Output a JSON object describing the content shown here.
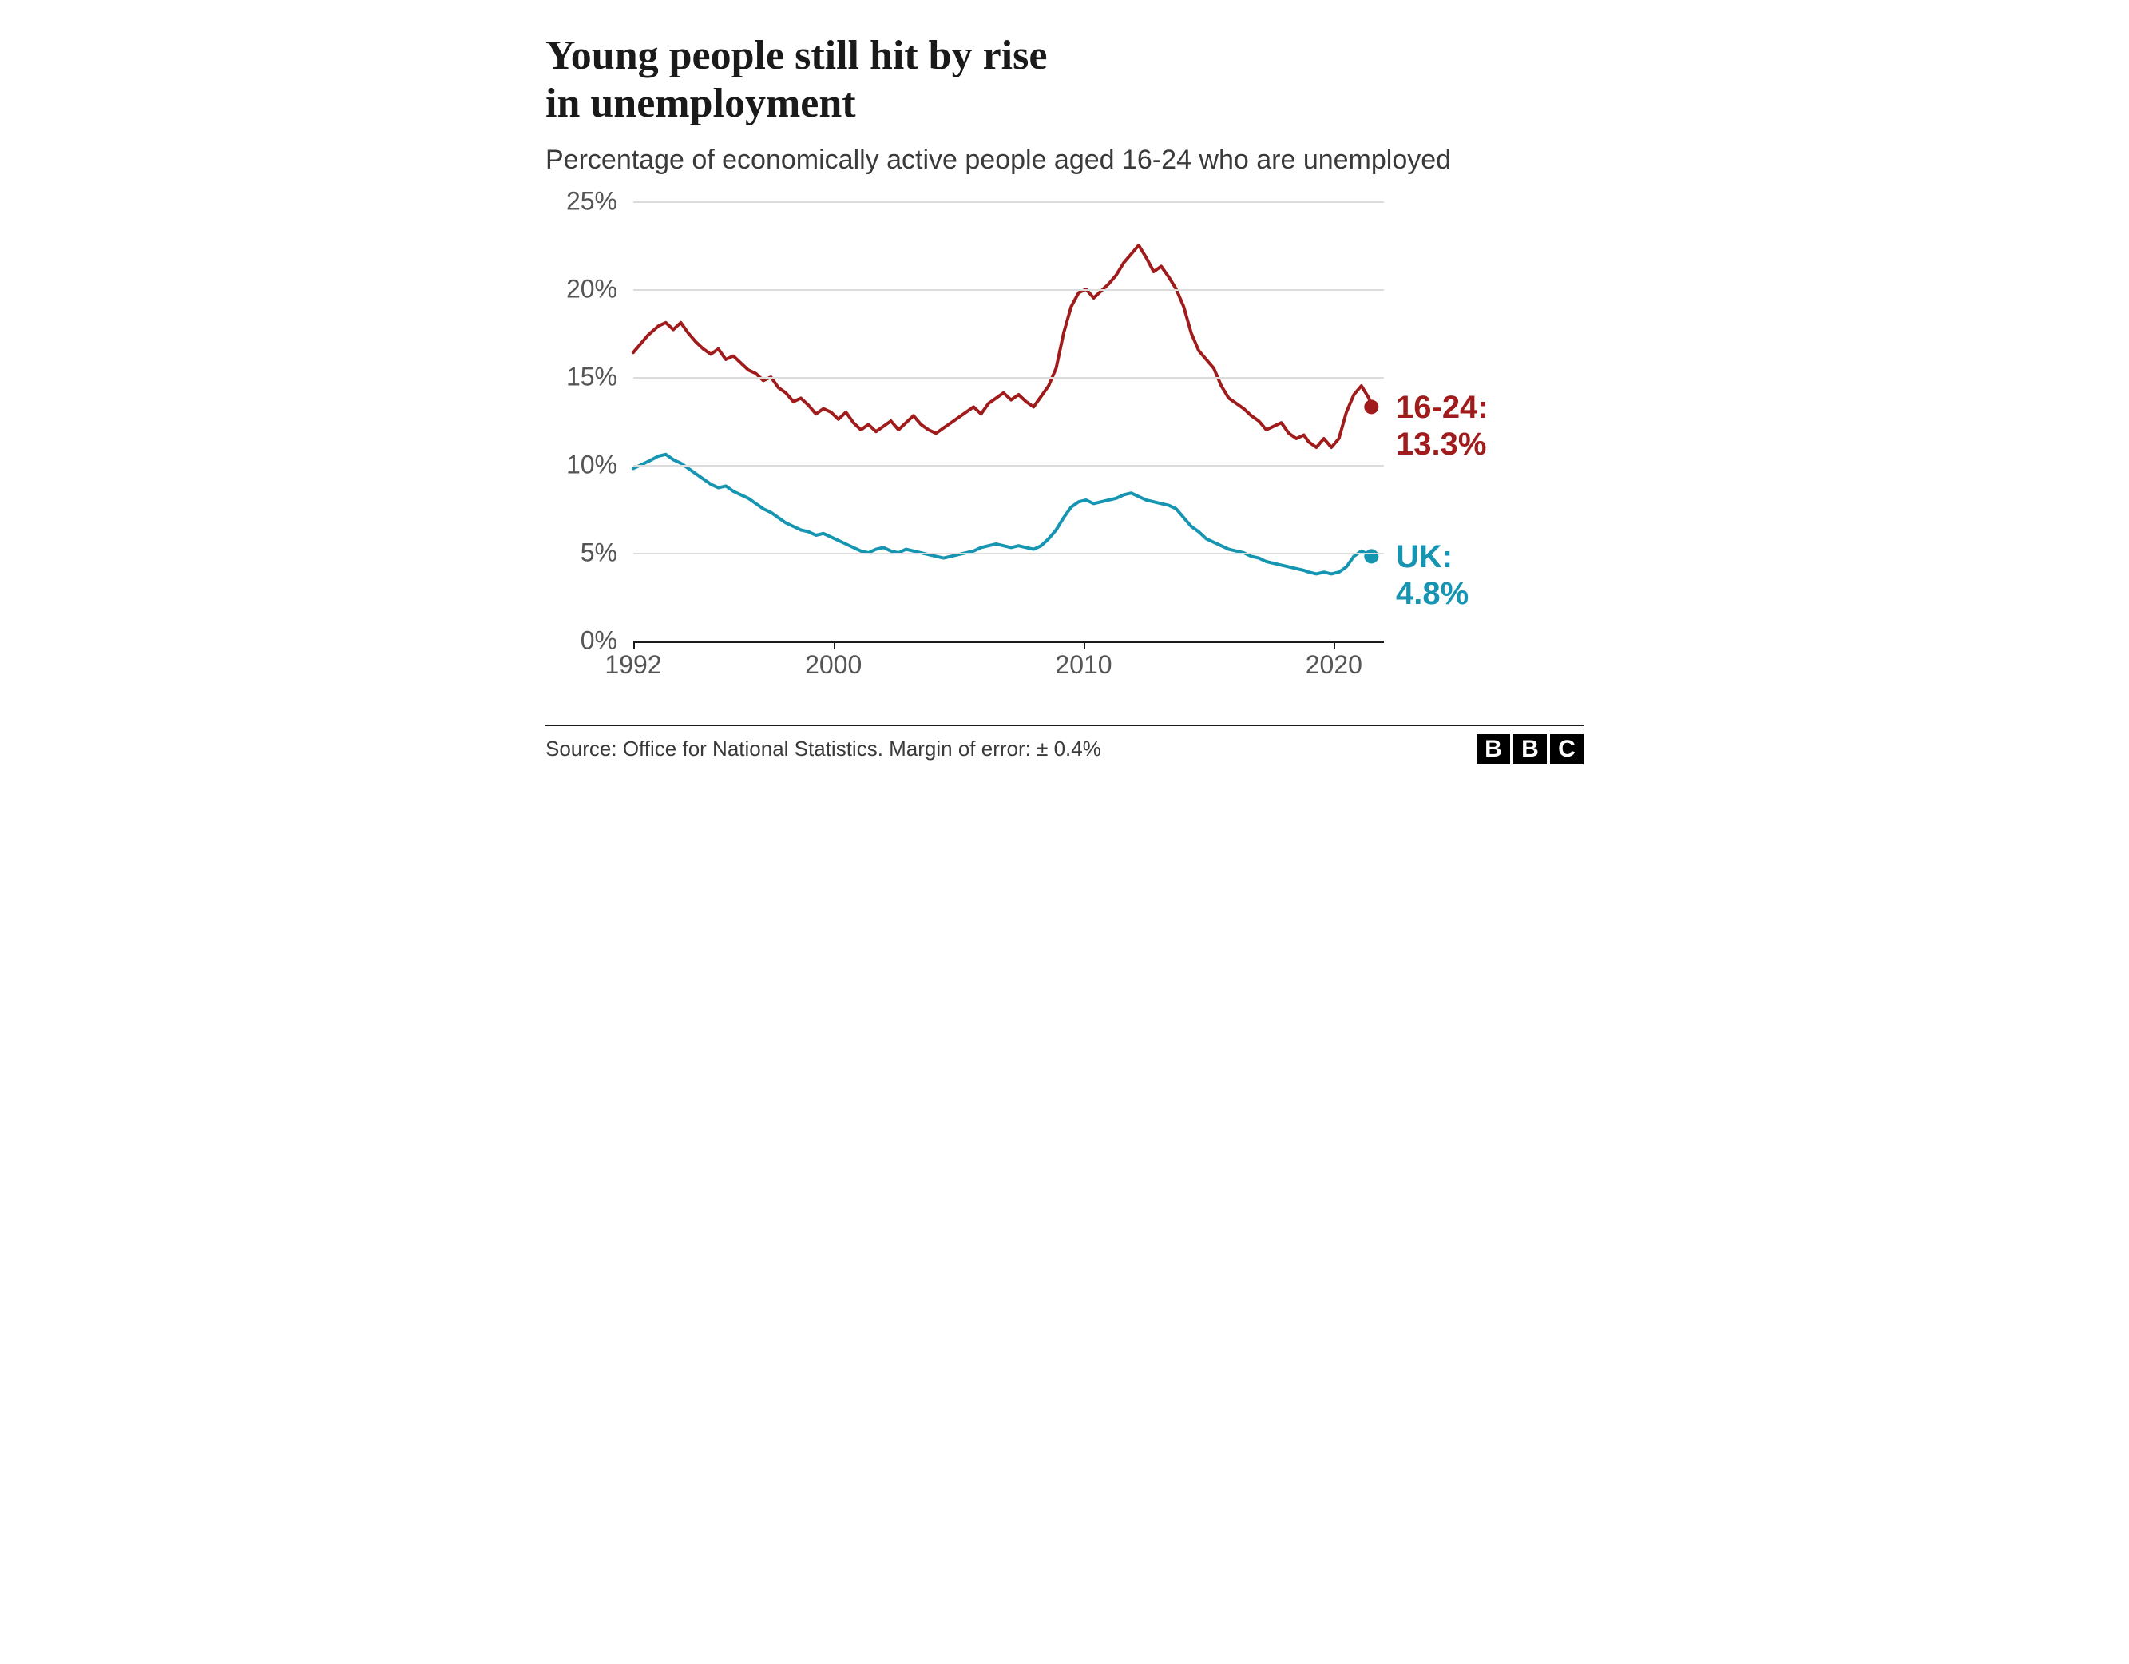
{
  "chart": {
    "type": "line",
    "title": "Young people still hit by rise\nin unemployment",
    "subtitle": "Percentage of economically active people aged 16-24 who are unemployed",
    "background_color": "#ffffff",
    "grid_color": "#dcdcdc",
    "axis_color": "#1a1a1a",
    "axis_label_color": "#555555",
    "title_fontsize": 52,
    "subtitle_fontsize": 34,
    "axis_label_fontsize": 32,
    "end_label_fontsize": 40,
    "x_domain": [
      1992,
      2022
    ],
    "y_domain": [
      0,
      25
    ],
    "y_ticks": [
      0,
      5,
      10,
      15,
      20,
      25
    ],
    "y_tick_labels": [
      "0%",
      "5%",
      "10%",
      "15%",
      "20%",
      "25%"
    ],
    "x_ticks": [
      1992,
      2000,
      2010,
      2020
    ],
    "x_tick_labels": [
      "1992",
      "2000",
      "2010",
      "2020"
    ],
    "line_width": 4,
    "end_marker_radius": 9,
    "series": [
      {
        "name": "16-24",
        "color": "#a01b1b",
        "end_label_line1": "16-24:",
        "end_label_line2": "13.3%",
        "end_value": 13.3,
        "data": [
          [
            1992.0,
            16.4
          ],
          [
            1992.3,
            16.9
          ],
          [
            1992.6,
            17.4
          ],
          [
            1993.0,
            17.9
          ],
          [
            1993.3,
            18.1
          ],
          [
            1993.6,
            17.7
          ],
          [
            1993.9,
            18.1
          ],
          [
            1994.2,
            17.5
          ],
          [
            1994.5,
            17.0
          ],
          [
            1994.8,
            16.6
          ],
          [
            1995.1,
            16.3
          ],
          [
            1995.4,
            16.6
          ],
          [
            1995.7,
            16.0
          ],
          [
            1996.0,
            16.2
          ],
          [
            1996.3,
            15.8
          ],
          [
            1996.6,
            15.4
          ],
          [
            1996.9,
            15.2
          ],
          [
            1997.2,
            14.8
          ],
          [
            1997.5,
            15.0
          ],
          [
            1997.8,
            14.4
          ],
          [
            1998.1,
            14.1
          ],
          [
            1998.4,
            13.6
          ],
          [
            1998.7,
            13.8
          ],
          [
            1999.0,
            13.4
          ],
          [
            1999.3,
            12.9
          ],
          [
            1999.6,
            13.2
          ],
          [
            1999.9,
            13.0
          ],
          [
            2000.2,
            12.6
          ],
          [
            2000.5,
            13.0
          ],
          [
            2000.8,
            12.4
          ],
          [
            2001.1,
            12.0
          ],
          [
            2001.4,
            12.3
          ],
          [
            2001.7,
            11.9
          ],
          [
            2002.0,
            12.2
          ],
          [
            2002.3,
            12.5
          ],
          [
            2002.6,
            12.0
          ],
          [
            2002.9,
            12.4
          ],
          [
            2003.2,
            12.8
          ],
          [
            2003.5,
            12.3
          ],
          [
            2003.8,
            12.0
          ],
          [
            2004.1,
            11.8
          ],
          [
            2004.4,
            12.1
          ],
          [
            2004.7,
            12.4
          ],
          [
            2005.0,
            12.7
          ],
          [
            2005.3,
            13.0
          ],
          [
            2005.6,
            13.3
          ],
          [
            2005.9,
            12.9
          ],
          [
            2006.2,
            13.5
          ],
          [
            2006.5,
            13.8
          ],
          [
            2006.8,
            14.1
          ],
          [
            2007.1,
            13.7
          ],
          [
            2007.4,
            14.0
          ],
          [
            2007.7,
            13.6
          ],
          [
            2008.0,
            13.3
          ],
          [
            2008.3,
            13.9
          ],
          [
            2008.6,
            14.5
          ],
          [
            2008.9,
            15.5
          ],
          [
            2009.2,
            17.5
          ],
          [
            2009.5,
            19.0
          ],
          [
            2009.8,
            19.8
          ],
          [
            2010.1,
            20.0
          ],
          [
            2010.4,
            19.5
          ],
          [
            2010.7,
            19.9
          ],
          [
            2011.0,
            20.3
          ],
          [
            2011.3,
            20.8
          ],
          [
            2011.6,
            21.5
          ],
          [
            2011.9,
            22.0
          ],
          [
            2012.2,
            22.5
          ],
          [
            2012.5,
            21.8
          ],
          [
            2012.8,
            21.0
          ],
          [
            2013.1,
            21.3
          ],
          [
            2013.4,
            20.7
          ],
          [
            2013.7,
            20.0
          ],
          [
            2014.0,
            19.0
          ],
          [
            2014.3,
            17.5
          ],
          [
            2014.6,
            16.5
          ],
          [
            2014.9,
            16.0
          ],
          [
            2015.2,
            15.5
          ],
          [
            2015.5,
            14.5
          ],
          [
            2015.8,
            13.8
          ],
          [
            2016.1,
            13.5
          ],
          [
            2016.4,
            13.2
          ],
          [
            2016.7,
            12.8
          ],
          [
            2017.0,
            12.5
          ],
          [
            2017.3,
            12.0
          ],
          [
            2017.6,
            12.2
          ],
          [
            2017.9,
            12.4
          ],
          [
            2018.2,
            11.8
          ],
          [
            2018.5,
            11.5
          ],
          [
            2018.8,
            11.7
          ],
          [
            2019.0,
            11.3
          ],
          [
            2019.3,
            11.0
          ],
          [
            2019.6,
            11.5
          ],
          [
            2019.9,
            11.0
          ],
          [
            2020.2,
            11.5
          ],
          [
            2020.5,
            13.0
          ],
          [
            2020.8,
            14.0
          ],
          [
            2021.1,
            14.5
          ],
          [
            2021.4,
            13.8
          ],
          [
            2021.5,
            13.3
          ]
        ]
      },
      {
        "name": "UK",
        "color": "#1695b2",
        "end_label_line1": "UK:",
        "end_label_line2": "4.8%",
        "end_value": 4.8,
        "data": [
          [
            1992.0,
            9.8
          ],
          [
            1992.3,
            10.0
          ],
          [
            1992.6,
            10.2
          ],
          [
            1993.0,
            10.5
          ],
          [
            1993.3,
            10.6
          ],
          [
            1993.6,
            10.3
          ],
          [
            1993.9,
            10.1
          ],
          [
            1994.2,
            9.8
          ],
          [
            1994.5,
            9.5
          ],
          [
            1994.8,
            9.2
          ],
          [
            1995.1,
            8.9
          ],
          [
            1995.4,
            8.7
          ],
          [
            1995.7,
            8.8
          ],
          [
            1996.0,
            8.5
          ],
          [
            1996.3,
            8.3
          ],
          [
            1996.6,
            8.1
          ],
          [
            1996.9,
            7.8
          ],
          [
            1997.2,
            7.5
          ],
          [
            1997.5,
            7.3
          ],
          [
            1997.8,
            7.0
          ],
          [
            1998.1,
            6.7
          ],
          [
            1998.4,
            6.5
          ],
          [
            1998.7,
            6.3
          ],
          [
            1999.0,
            6.2
          ],
          [
            1999.3,
            6.0
          ],
          [
            1999.6,
            6.1
          ],
          [
            1999.9,
            5.9
          ],
          [
            2000.2,
            5.7
          ],
          [
            2000.5,
            5.5
          ],
          [
            2000.8,
            5.3
          ],
          [
            2001.1,
            5.1
          ],
          [
            2001.4,
            5.0
          ],
          [
            2001.7,
            5.2
          ],
          [
            2002.0,
            5.3
          ],
          [
            2002.3,
            5.1
          ],
          [
            2002.6,
            5.0
          ],
          [
            2002.9,
            5.2
          ],
          [
            2003.2,
            5.1
          ],
          [
            2003.5,
            5.0
          ],
          [
            2003.8,
            4.9
          ],
          [
            2004.1,
            4.8
          ],
          [
            2004.4,
            4.7
          ],
          [
            2004.7,
            4.8
          ],
          [
            2005.0,
            4.9
          ],
          [
            2005.3,
            5.0
          ],
          [
            2005.6,
            5.1
          ],
          [
            2005.9,
            5.3
          ],
          [
            2006.2,
            5.4
          ],
          [
            2006.5,
            5.5
          ],
          [
            2006.8,
            5.4
          ],
          [
            2007.1,
            5.3
          ],
          [
            2007.4,
            5.4
          ],
          [
            2007.7,
            5.3
          ],
          [
            2008.0,
            5.2
          ],
          [
            2008.3,
            5.4
          ],
          [
            2008.6,
            5.8
          ],
          [
            2008.9,
            6.3
          ],
          [
            2009.2,
            7.0
          ],
          [
            2009.5,
            7.6
          ],
          [
            2009.8,
            7.9
          ],
          [
            2010.1,
            8.0
          ],
          [
            2010.4,
            7.8
          ],
          [
            2010.7,
            7.9
          ],
          [
            2011.0,
            8.0
          ],
          [
            2011.3,
            8.1
          ],
          [
            2011.6,
            8.3
          ],
          [
            2011.9,
            8.4
          ],
          [
            2012.2,
            8.2
          ],
          [
            2012.5,
            8.0
          ],
          [
            2012.8,
            7.9
          ],
          [
            2013.1,
            7.8
          ],
          [
            2013.4,
            7.7
          ],
          [
            2013.7,
            7.5
          ],
          [
            2014.0,
            7.0
          ],
          [
            2014.3,
            6.5
          ],
          [
            2014.6,
            6.2
          ],
          [
            2014.9,
            5.8
          ],
          [
            2015.2,
            5.6
          ],
          [
            2015.5,
            5.4
          ],
          [
            2015.8,
            5.2
          ],
          [
            2016.1,
            5.1
          ],
          [
            2016.4,
            5.0
          ],
          [
            2016.7,
            4.8
          ],
          [
            2017.0,
            4.7
          ],
          [
            2017.3,
            4.5
          ],
          [
            2017.6,
            4.4
          ],
          [
            2017.9,
            4.3
          ],
          [
            2018.2,
            4.2
          ],
          [
            2018.5,
            4.1
          ],
          [
            2018.8,
            4.0
          ],
          [
            2019.0,
            3.9
          ],
          [
            2019.3,
            3.8
          ],
          [
            2019.6,
            3.9
          ],
          [
            2019.9,
            3.8
          ],
          [
            2020.2,
            3.9
          ],
          [
            2020.5,
            4.2
          ],
          [
            2020.8,
            4.8
          ],
          [
            2021.1,
            5.1
          ],
          [
            2021.4,
            4.9
          ],
          [
            2021.5,
            4.8
          ]
        ]
      }
    ],
    "source": "Source: Office for National Statistics. Margin of error: ± 0.4%",
    "logo": {
      "letters": [
        "B",
        "B",
        "C"
      ]
    }
  }
}
